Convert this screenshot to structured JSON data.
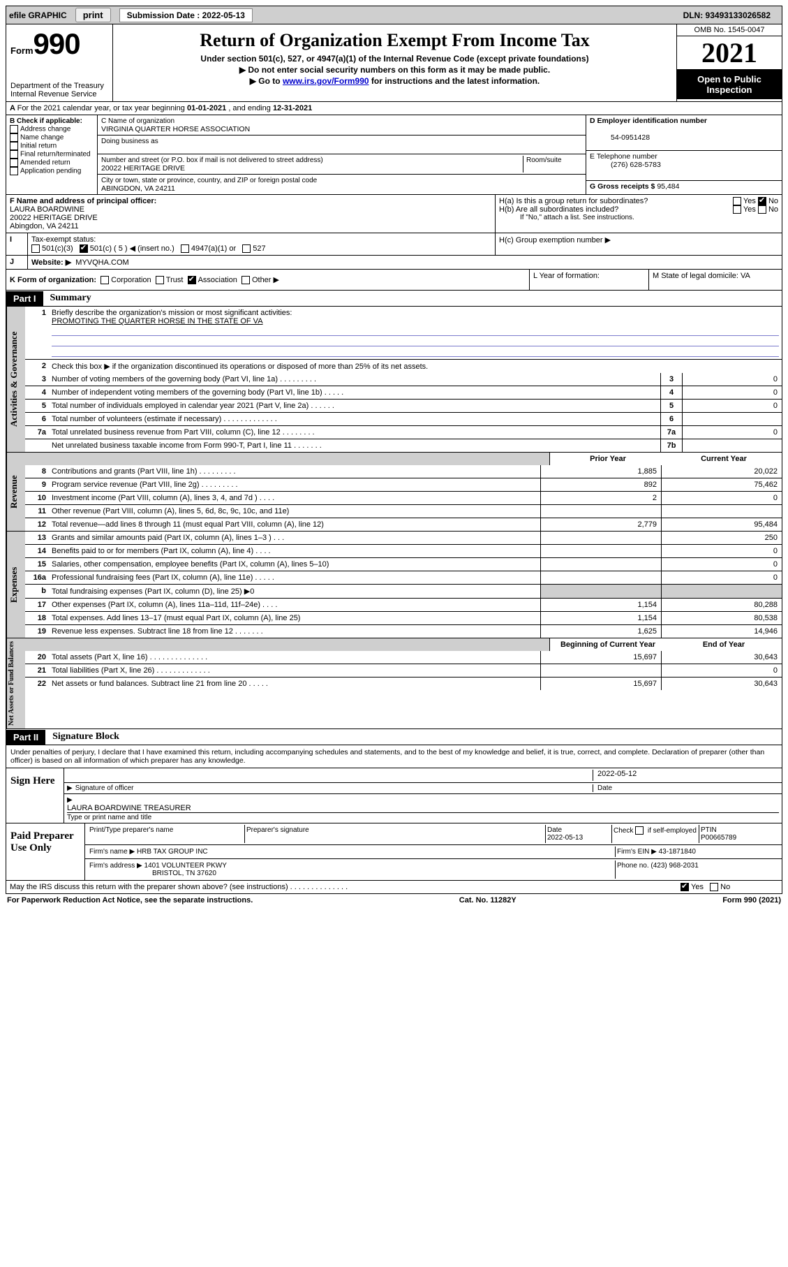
{
  "topbar": {
    "efile": "efile GRAPHIC",
    "print": "print",
    "sub_label": "Submission Date : 2022-05-13",
    "dln": "DLN: 93493133026582"
  },
  "header": {
    "form_word": "Form",
    "form_num": "990",
    "dept": "Department of the Treasury",
    "irs": "Internal Revenue Service",
    "title": "Return of Organization Exempt From Income Tax",
    "sub1": "Under section 501(c), 527, or 4947(a)(1) of the Internal Revenue Code (except private foundations)",
    "sub2": "▶ Do not enter social security numbers on this form as it may be made public.",
    "sub3_pre": "▶ Go to ",
    "sub3_link": "www.irs.gov/Form990",
    "sub3_post": " for instructions and the latest information.",
    "omb": "OMB No. 1545-0047",
    "year": "2021",
    "open1": "Open to Public",
    "open2": "Inspection"
  },
  "lineA": {
    "text_a": "For the 2021 calendar year, or tax year beginning ",
    "begin": "01-01-2021",
    "text_b": " , and ending ",
    "end": "12-31-2021"
  },
  "boxB": {
    "label": "B Check if applicable:",
    "opts": [
      "Address change",
      "Name change",
      "Initial return",
      "Final return/terminated",
      "Amended return",
      "Application pending"
    ]
  },
  "boxC": {
    "label": "C Name of organization",
    "name": "VIRGINIA QUARTER HORSE ASSOCIATION",
    "dba": "Doing business as",
    "addr_label": "Number and street (or P.O. box if mail is not delivered to street address)",
    "room": "Room/suite",
    "addr": "20022 HERITAGE DRIVE",
    "city_label": "City or town, state or province, country, and ZIP or foreign postal code",
    "city": "ABINGDON, VA  24211"
  },
  "boxD": {
    "label": "D Employer identification number",
    "val": "54-0951428"
  },
  "boxE": {
    "label": "E Telephone number",
    "val": "(276) 628-5783"
  },
  "boxG": {
    "label": "G Gross receipts $",
    "val": "95,484"
  },
  "boxF": {
    "label": "F Name and address of principal officer:",
    "name": "LAURA BOARDWINE",
    "addr1": "20022 HERITAGE DRIVE",
    "addr2": "Abingdon, VA  24211"
  },
  "boxH": {
    "ha": "H(a)  Is this a group return for subordinates?",
    "hb": "H(b)  Are all subordinates included?",
    "hb_note": "If \"No,\" attach a list. See instructions.",
    "hc": "H(c)  Group exemption number ▶",
    "yes": "Yes",
    "no": "No"
  },
  "lineI": {
    "label": "Tax-exempt status:",
    "o1": "501(c)(3)",
    "o2_a": "501(c) ( 5 ) ◀ (insert no.)",
    "o3": "4947(a)(1) or",
    "o4": "527"
  },
  "lineJ": {
    "label": "Website: ▶",
    "val": "MYVQHA.COM"
  },
  "lineK": {
    "label": "K Form of organization:",
    "o1": "Corporation",
    "o2": "Trust",
    "o3": "Association",
    "o4": "Other ▶"
  },
  "lineL": {
    "label": "L Year of formation:"
  },
  "lineM": {
    "label": "M State of legal domicile: VA"
  },
  "part1": {
    "label": "Part I",
    "heading": "Summary",
    "vlabels": {
      "gov": "Activities & Governance",
      "rev": "Revenue",
      "exp": "Expenses",
      "net": "Net Assets or\nFund Balances"
    },
    "q1": "Briefly describe the organization's mission or most significant activities:",
    "q1_val": "PROMOTING THE QUARTER HORSE IN THE STATE OF VA",
    "q2": "Check this box ▶        if the organization discontinued its operations or disposed of more than 25% of its net assets.",
    "rows_gov": [
      {
        "n": "3",
        "d": "Number of voting members of the governing body (Part VI, line 1a)   .    .    .    .    .    .    .    .    .",
        "box": "3",
        "v": "0"
      },
      {
        "n": "4",
        "d": "Number of independent voting members of the governing body (Part VI, line 1b)   .    .    .    .    .",
        "box": "4",
        "v": "0"
      },
      {
        "n": "5",
        "d": "Total number of individuals employed in calendar year 2021 (Part V, line 2a)   .    .    .    .    .    .",
        "box": "5",
        "v": "0"
      },
      {
        "n": "6",
        "d": "Total number of volunteers (estimate if necessary)   .    .    .    .    .    .    .    .    .    .    .    .    .",
        "box": "6",
        "v": ""
      },
      {
        "n": "7a",
        "d": "Total unrelated business revenue from Part VIII, column (C), line 12   .    .    .    .    .    .    .    .",
        "box": "7a",
        "v": "0"
      },
      {
        "n": "",
        "d": "Net unrelated business taxable income from Form 990-T, Part I, line 11   .    .    .    .    .    .    .",
        "box": "7b",
        "v": ""
      }
    ],
    "col_a": "Prior Year",
    "col_b": "Current Year",
    "rows_rev": [
      {
        "n": "8",
        "d": "Contributions and grants (Part VIII, line 1h)   .    .    .    .    .    .    .    .    .",
        "a": "1,885",
        "b": "20,022"
      },
      {
        "n": "9",
        "d": "Program service revenue (Part VIII, line 2g)   .    .    .    .    .    .    .    .    .",
        "a": "892",
        "b": "75,462"
      },
      {
        "n": "10",
        "d": "Investment income (Part VIII, column (A), lines 3, 4, and 7d )   .    .    .    .",
        "a": "2",
        "b": "0"
      },
      {
        "n": "11",
        "d": "Other revenue (Part VIII, column (A), lines 5, 6d, 8c, 9c, 10c, and 11e)",
        "a": "",
        "b": ""
      },
      {
        "n": "12",
        "d": "Total revenue—add lines 8 through 11 (must equal Part VIII, column (A), line 12)",
        "a": "2,779",
        "b": "95,484"
      }
    ],
    "rows_exp": [
      {
        "n": "13",
        "d": "Grants and similar amounts paid (Part IX, column (A), lines 1–3 )   .    .    .",
        "a": "",
        "b": "250"
      },
      {
        "n": "14",
        "d": "Benefits paid to or for members (Part IX, column (A), line 4)   .    .    .    .",
        "a": "",
        "b": "0"
      },
      {
        "n": "15",
        "d": "Salaries, other compensation, employee benefits (Part IX, column (A), lines 5–10)",
        "a": "",
        "b": "0"
      },
      {
        "n": "16a",
        "d": "Professional fundraising fees (Part IX, column (A), line 11e)   .    .    .    .    .",
        "a": "",
        "b": "0"
      },
      {
        "n": "b",
        "d": "Total fundraising expenses (Part IX, column (D), line 25) ▶0",
        "a": "shade",
        "b": "shade"
      },
      {
        "n": "17",
        "d": "Other expenses (Part IX, column (A), lines 11a–11d, 11f–24e)   .    .    .    .",
        "a": "1,154",
        "b": "80,288"
      },
      {
        "n": "18",
        "d": "Total expenses. Add lines 13–17 (must equal Part IX, column (A), line 25)",
        "a": "1,154",
        "b": "80,538"
      },
      {
        "n": "19",
        "d": "Revenue less expenses. Subtract line 18 from line 12   .    .    .    .    .    .    .",
        "a": "1,625",
        "b": "14,946"
      }
    ],
    "col_c": "Beginning of Current Year",
    "col_d": "End of Year",
    "rows_net": [
      {
        "n": "20",
        "d": "Total assets (Part X, line 16)   .    .    .    .    .    .    .    .    .    .    .    .    .    .",
        "a": "15,697",
        "b": "30,643"
      },
      {
        "n": "21",
        "d": "Total liabilities (Part X, line 26)   .    .    .    .    .    .    .    .    .    .    .    .    .",
        "a": "",
        "b": "0"
      },
      {
        "n": "22",
        "d": "Net assets or fund balances. Subtract line 21 from line 20   .    .    .    .    .",
        "a": "15,697",
        "b": "30,643"
      }
    ]
  },
  "part2": {
    "label": "Part II",
    "heading": "Signature Block",
    "decl": "Under penalties of perjury, I declare that I have examined this return, including accompanying schedules and statements, and to the best of my knowledge and belief, it is true, correct, and complete. Declaration of preparer (other than officer) is based on all information of which preparer has any knowledge.",
    "sign_here": "Sign Here",
    "sig_officer": "Signature of officer",
    "sig_date": "2022-05-12",
    "date_label": "Date",
    "officer_name": "LAURA BOARDWINE  TREASURER",
    "officer_label": "Type or print name and title",
    "paid": "Paid Preparer Use Only",
    "pp_name_label": "Print/Type preparer's name",
    "pp_sig_label": "Preparer's signature",
    "pp_date_label": "Date",
    "pp_date": "2022-05-13",
    "pp_check": "Check         if self-employed",
    "ptin_label": "PTIN",
    "ptin": "P00665789",
    "firm_name_label": "Firm's name    ▶",
    "firm_name": "HRB TAX GROUP INC",
    "firm_ein_label": "Firm's EIN ▶",
    "firm_ein": "43-1871840",
    "firm_addr_label": "Firm's address ▶",
    "firm_addr1": "1401 VOLUNTEER PKWY",
    "firm_addr2": "BRISTOL, TN  37620",
    "phone_label": "Phone no.",
    "phone": "(423) 968-2031",
    "discuss": "May the IRS discuss this return with the preparer shown above? (see instructions)   .    .    .    .    .    .    .    .    .    .    .    .    .    .",
    "yes": "Yes",
    "no": "No"
  },
  "footer": {
    "left": "For Paperwork Reduction Act Notice, see the separate instructions.",
    "mid": "Cat. No. 11282Y",
    "right_a": "Form ",
    "right_b": "990",
    "right_c": " (2021)"
  }
}
